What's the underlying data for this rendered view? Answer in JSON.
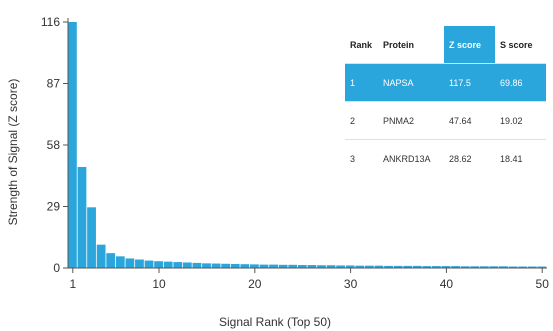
{
  "chart_data": {
    "type": "bar",
    "ylabel": "Strength of Signal (Z score)",
    "xlabel": "Signal Rank (Top 50)",
    "x": [
      1,
      2,
      3,
      4,
      5,
      6,
      7,
      8,
      9,
      10,
      11,
      12,
      13,
      14,
      15,
      16,
      17,
      18,
      19,
      20,
      21,
      22,
      23,
      24,
      25,
      26,
      27,
      28,
      29,
      30,
      31,
      32,
      33,
      34,
      35,
      36,
      37,
      38,
      39,
      40,
      41,
      42,
      43,
      44,
      45,
      46,
      47,
      48,
      49,
      50
    ],
    "values": [
      117.5,
      47.64,
      28.62,
      11,
      7,
      5.5,
      4.5,
      4,
      3.5,
      3.2,
      3,
      2.8,
      2.6,
      2.4,
      2.2,
      2.1,
      2,
      1.9,
      1.8,
      1.7,
      1.6,
      1.6,
      1.5,
      1.5,
      1.4,
      1.4,
      1.3,
      1.3,
      1.2,
      1.2,
      1.1,
      1.1,
      1.1,
      1,
      1,
      1,
      1,
      0.9,
      0.9,
      0.9,
      0.9,
      0.8,
      0.8,
      0.8,
      0.8,
      0.8,
      0.7,
      0.7,
      0.7,
      0.7
    ],
    "ylim": [
      0,
      116
    ],
    "yticks": [
      0,
      29,
      58,
      87,
      116
    ],
    "xticks": [
      1,
      10,
      20,
      30,
      40,
      50
    ],
    "bar_color": "#2aa6dc",
    "grid": false
  },
  "table": {
    "headers": [
      "Rank",
      "Protein",
      "Z score",
      "S score"
    ],
    "highlight_columns": [
      2,
      3
    ],
    "highlight_row": 0,
    "rows": [
      [
        "1",
        "NAPSA",
        "117.5",
        "69.86"
      ],
      [
        "2",
        "PNMA2",
        "47.64",
        "19.02"
      ],
      [
        "3",
        "ANKRD13A",
        "28.62",
        "18.41"
      ]
    ]
  }
}
